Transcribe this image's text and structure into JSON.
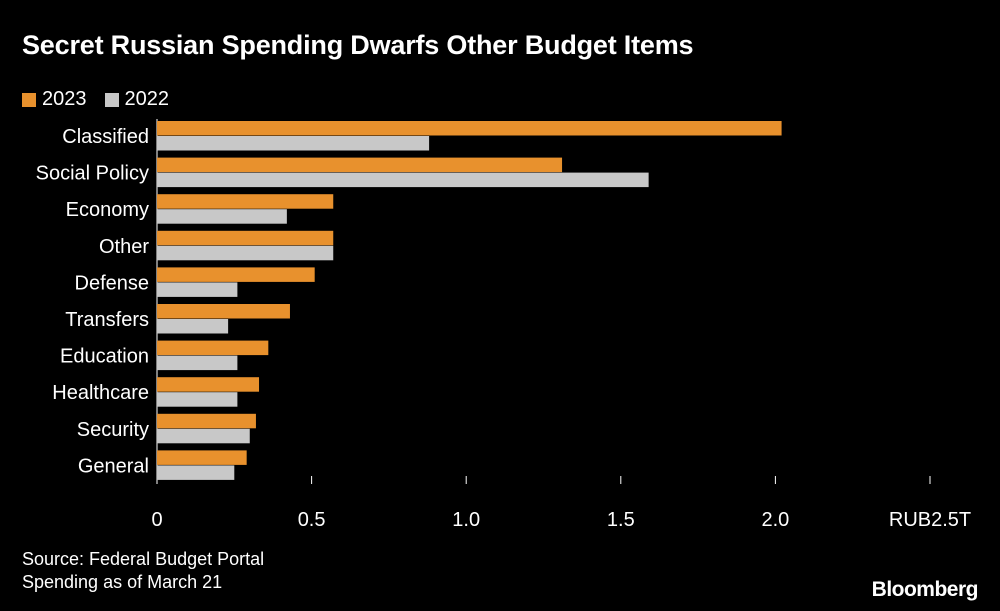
{
  "chart_data": {
    "type": "bar",
    "orientation": "horizontal",
    "title": "Secret Russian Spending Dwarfs Other Budget Items",
    "categories": [
      "Classified",
      "Social Policy",
      "Economy",
      "Other",
      "Defense",
      "Transfers",
      "Education",
      "Healthcare",
      "Security",
      "General"
    ],
    "series": [
      {
        "name": "2023",
        "color": "#e8912d",
        "values": [
          2.02,
          1.31,
          0.57,
          0.57,
          0.51,
          0.43,
          0.36,
          0.33,
          0.32,
          0.29
        ]
      },
      {
        "name": "2022",
        "color": "#c8c8c8",
        "values": [
          0.88,
          1.59,
          0.42,
          0.57,
          0.26,
          0.23,
          0.26,
          0.26,
          0.3,
          0.25
        ]
      }
    ],
    "xlim": [
      0,
      2.5
    ],
    "xticks": [
      0,
      0.5,
      1.0,
      1.5,
      2.0,
      2.5
    ],
    "xtick_labels": [
      "0",
      "0.5",
      "1.0",
      "1.5",
      "2.0",
      "RUB2.5T"
    ],
    "legend_position": "top-left"
  },
  "footer": {
    "source_line": "Source: Federal Budget Portal",
    "note_line": "Spending as of March 21",
    "brand": "Bloomberg"
  }
}
